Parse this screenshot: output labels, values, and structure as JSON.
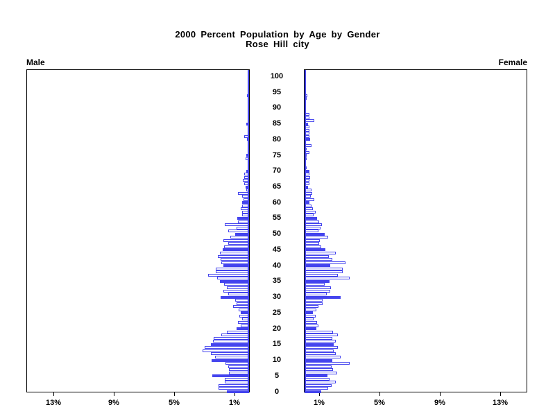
{
  "title": {
    "line1": "2000 Percent Population by Age by Gender",
    "line2": "Rose Hill city"
  },
  "side_labels": {
    "left": "Male",
    "right": "Female"
  },
  "chart_data": {
    "type": "bar",
    "subtype": "population-pyramid",
    "title": "2000 Percent Population by Age by Gender",
    "subtitle": "Rose Hill city",
    "orientation": "horizontal, male bars grow left, female bars grow right",
    "age_min": 0,
    "age_max": 100,
    "age_axis_ticks": [
      0,
      5,
      10,
      15,
      20,
      25,
      30,
      35,
      40,
      45,
      50,
      55,
      60,
      65,
      70,
      75,
      80,
      85,
      90,
      95,
      100
    ],
    "x_axis_tick_percents": [
      1,
      5,
      9,
      13
    ],
    "x_axis_tick_labels_male": [
      "13%",
      "9%",
      "5%",
      "1%"
    ],
    "x_axis_tick_labels_female": [
      "1%",
      "5%",
      "9%",
      "13%"
    ],
    "xlim_percent": [
      0,
      14.7
    ],
    "highlight_every_n_years": 5,
    "legend": "bars at ages divisible by 5 are solid blue; other ages are white with blue outline",
    "units": "percent of total population per single year of age",
    "colors": {
      "bar_blue": "#4444ee",
      "axis_black": "#000000",
      "background": "#ffffff"
    },
    "series": [
      {
        "name": "Male",
        "values": [
          1.45,
          2.0,
          2.0,
          1.6,
          1.6,
          2.45,
          1.35,
          1.35,
          1.4,
          1.55,
          2.5,
          2.25,
          2.55,
          3.1,
          2.95,
          2.55,
          2.4,
          2.35,
          1.85,
          1.45,
          0.85,
          0.55,
          0.75,
          0.45,
          0.65,
          0.55,
          0.7,
          1.05,
          0.85,
          0.9,
          1.9,
          1.4,
          1.7,
          1.45,
          1.65,
          1.95,
          2.1,
          2.7,
          2.2,
          2.2,
          1.7,
          1.85,
          1.9,
          2.05,
          1.95,
          1.75,
          1.65,
          1.4,
          1.7,
          1.25,
          0.9,
          1.4,
          0.85,
          1.6,
          0.75,
          0.8,
          0.45,
          0.45,
          0.55,
          0.45,
          0.45,
          0.35,
          0.45,
          0.75,
          0.2,
          0.25,
          0.3,
          0.4,
          0.3,
          0.3,
          0.2,
          0.1,
          0.1,
          0.05,
          0.25,
          0.2,
          0.1,
          0.1,
          0.1,
          0.05,
          0.15,
          0.3,
          0.1,
          0.1,
          0,
          0.2,
          0,
          0,
          0,
          0,
          0,
          0,
          0,
          0,
          0.15,
          0.05,
          0,
          0,
          0,
          0,
          0
        ]
      },
      {
        "name": "Female",
        "values": [
          1.1,
          1.55,
          1.8,
          2.05,
          1.65,
          1.5,
          2.15,
          1.9,
          1.8,
          3.0,
          1.85,
          2.4,
          2.05,
          1.95,
          2.2,
          1.95,
          2.05,
          1.85,
          2.2,
          1.9,
          0.8,
          0.9,
          0.85,
          0.6,
          0.75,
          0.55,
          0.8,
          0.9,
          1.2,
          1.2,
          2.4,
          1.45,
          1.7,
          1.75,
          1.35,
          1.65,
          3.0,
          2.2,
          2.55,
          2.55,
          1.7,
          2.7,
          1.85,
          1.6,
          2.05,
          1.4,
          1.1,
          0.95,
          1.0,
          1.55,
          1.35,
          0.9,
          1.05,
          1.15,
          0.95,
          0.85,
          0.6,
          0.75,
          0.55,
          0.45,
          0.3,
          0.65,
          0.4,
          0.5,
          0.45,
          0.25,
          0.3,
          0.3,
          0.35,
          0.3,
          0.3,
          0.15,
          0.1,
          0.1,
          0.15,
          0.15,
          0.3,
          0.15,
          0.45,
          0.1,
          0.35,
          0.3,
          0.3,
          0.3,
          0.3,
          0.25,
          0.65,
          0.3,
          0.3,
          0,
          0.1,
          0,
          0,
          0.15,
          0.2,
          0,
          0,
          0,
          0,
          0,
          0
        ]
      }
    ]
  }
}
